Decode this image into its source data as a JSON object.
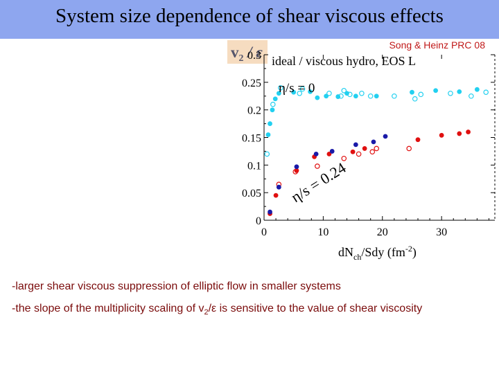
{
  "title": "System size dependence of shear viscous effects",
  "citation": "Song & Heinz PRC 08",
  "bullets": {
    "b1": "-larger shear viscous suppression of elliptic flow in smaller systems",
    "b2_pre": "-the slope of the multiplicity scaling of v",
    "b2_sub": "2",
    "b2_post": "/ε is sensitive to the value of shear viscosity"
  },
  "chart_data": {
    "type": "scatter",
    "title": "ideal / viscous hydro, EOS L",
    "ylabel": "v2 / ε",
    "xlabel": "dNch/Sdy (fm-2)",
    "xlim": [
      0,
      39
    ],
    "ylim": [
      0,
      0.3
    ],
    "x_ticks": [
      0,
      10,
      20,
      30
    ],
    "x_tick_labels": [
      "0",
      "10",
      "20",
      "30"
    ],
    "y_ticks": [
      0,
      0.05,
      0.1,
      0.15,
      0.2,
      0.25,
      0.3
    ],
    "y_tick_labels": [
      "0",
      "0.05",
      "0.1",
      "0.15",
      "0.2",
      "0.25",
      "0.3"
    ],
    "annotations": [
      "η/s = 0",
      "η/s = 0.24"
    ],
    "colors": {
      "ideal": "#22d0f0",
      "viscous_red": "#e01010",
      "viscous_blue": "#1a1aa8"
    },
    "series": [
      {
        "color": "#22d0f0",
        "marker": "filled",
        "x": [
          0.7,
          1.0,
          1.4,
          1.9,
          2.5,
          5.0,
          7.8,
          9.0,
          10.5,
          12.5,
          14.0,
          15.5,
          19.0,
          25.0,
          29.0,
          33.0,
          36.0
        ],
        "y": [
          0.155,
          0.175,
          0.2,
          0.22,
          0.23,
          0.232,
          0.233,
          0.222,
          0.225,
          0.224,
          0.23,
          0.225,
          0.225,
          0.232,
          0.235,
          0.233,
          0.237
        ]
      },
      {
        "color": "#22d0f0",
        "marker": "open",
        "x": [
          0.5,
          1.5,
          2.8,
          6.0,
          6.5,
          11.0,
          13.0,
          13.5,
          14.5,
          16.5,
          18.0,
          22.0,
          25.5,
          26.5,
          31.5,
          35.0,
          37.5
        ],
        "y": [
          0.12,
          0.21,
          0.24,
          0.23,
          0.238,
          0.23,
          0.225,
          0.235,
          0.228,
          0.23,
          0.225,
          0.225,
          0.22,
          0.228,
          0.23,
          0.225,
          0.232
        ]
      },
      {
        "color": "#e01010",
        "marker": "filled",
        "x": [
          1.0,
          2.0,
          5.5,
          8.5,
          11.0,
          15.0,
          17.0,
          26.0,
          30.0,
          33.0,
          34.5
        ],
        "y": [
          0.012,
          0.045,
          0.09,
          0.115,
          0.12,
          0.124,
          0.13,
          0.146,
          0.154,
          0.157,
          0.16
        ]
      },
      {
        "color": "#e01010",
        "marker": "open",
        "x": [
          2.5,
          5.3,
          9.0,
          13.5,
          16.0,
          18.3,
          19.0,
          24.5
        ],
        "y": [
          0.065,
          0.088,
          0.098,
          0.112,
          0.12,
          0.124,
          0.13,
          0.13
        ]
      },
      {
        "color": "#1a1aa8",
        "marker": "filled",
        "x": [
          1.0,
          2.5,
          5.5,
          8.8,
          11.5,
          15.5,
          18.5,
          20.5
        ],
        "y": [
          0.015,
          0.06,
          0.097,
          0.12,
          0.125,
          0.137,
          0.142,
          0.152
        ]
      }
    ]
  }
}
